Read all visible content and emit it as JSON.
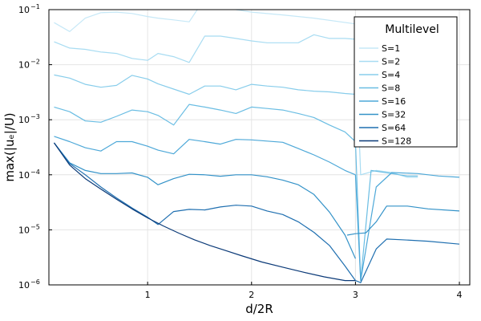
{
  "chart_data": {
    "type": "line",
    "title": "",
    "xlabel": "d/2R",
    "ylabel": "max(|uₑ|/U)",
    "xlim": [
      0.05,
      4.1
    ],
    "ylim": [
      1e-06,
      0.1
    ],
    "yscale": "log",
    "grid": true,
    "legend_position": "top-right",
    "x_ticks": [
      {
        "value": 1,
        "label": "1"
      },
      {
        "value": 2,
        "label": "2"
      },
      {
        "value": 3,
        "label": "3"
      },
      {
        "value": 4,
        "label": "4"
      }
    ],
    "y_ticks": [
      {
        "value": 1e-06,
        "base": "10",
        "exp": "−6"
      },
      {
        "value": 1e-05,
        "base": "10",
        "exp": "−5"
      },
      {
        "value": 0.0001,
        "base": "10",
        "exp": "−4"
      },
      {
        "value": 0.001,
        "base": "10",
        "exp": "−3"
      },
      {
        "value": 0.01,
        "base": "10",
        "exp": "−2"
      },
      {
        "value": 0.1,
        "base": "10",
        "exp": "−1"
      }
    ],
    "legend_title": "Multilevel",
    "series": [
      {
        "name": "S=1",
        "color": "#c6e8f7",
        "x": [
          0.1,
          0.25,
          0.4,
          0.55,
          0.7,
          0.85,
          1.0,
          1.1,
          1.25,
          1.4,
          1.55,
          1.7,
          1.85,
          2.0,
          2.3,
          2.6,
          3.0
        ],
        "y": [
          0.058,
          0.04,
          0.07,
          0.088,
          0.09,
          0.085,
          0.075,
          0.07,
          0.065,
          0.06,
          0.16,
          0.12,
          0.1,
          0.09,
          0.08,
          0.07,
          0.055
        ]
      },
      {
        "name": "S=2",
        "color": "#a8dcf2",
        "x": [
          0.1,
          0.25,
          0.4,
          0.55,
          0.7,
          0.85,
          1.0,
          1.1,
          1.25,
          1.4,
          1.55,
          1.7,
          1.85,
          2.0,
          2.15,
          2.3,
          2.45,
          2.6,
          2.75,
          2.9,
          3.0
        ],
        "y": [
          0.026,
          0.02,
          0.019,
          0.017,
          0.016,
          0.013,
          0.012,
          0.016,
          0.014,
          0.011,
          0.033,
          0.033,
          0.03,
          0.027,
          0.025,
          0.025,
          0.025,
          0.035,
          0.03,
          0.03,
          0.029
        ]
      },
      {
        "name": "S=4",
        "color": "#88cdeb",
        "x": [
          0.1,
          0.25,
          0.4,
          0.55,
          0.7,
          0.85,
          1.0,
          1.1,
          1.25,
          1.4,
          1.55,
          1.7,
          1.85,
          2.0,
          2.15,
          2.3,
          2.45,
          2.6,
          2.75,
          2.9,
          3.0
        ],
        "y": [
          0.0065,
          0.0057,
          0.0044,
          0.0039,
          0.0042,
          0.0064,
          0.0055,
          0.0045,
          0.0036,
          0.0029,
          0.0041,
          0.0041,
          0.0035,
          0.0044,
          0.0041,
          0.0039,
          0.0035,
          0.0033,
          0.0032,
          0.003,
          0.0029
        ]
      },
      {
        "name": "S=8",
        "color": "#6abde3",
        "x": [
          0.1,
          0.25,
          0.4,
          0.55,
          0.7,
          0.85,
          1.0,
          1.1,
          1.25,
          1.4,
          1.55,
          1.7,
          1.85,
          2.0,
          2.15,
          2.3,
          2.45,
          2.6,
          2.75,
          2.9,
          3.0
        ],
        "y": [
          0.0017,
          0.0014,
          0.00095,
          0.0009,
          0.00115,
          0.0015,
          0.0014,
          0.0012,
          0.0008,
          0.0019,
          0.0017,
          0.0015,
          0.0013,
          0.0017,
          0.0016,
          0.0015,
          0.0013,
          0.0011,
          0.0008,
          0.0006,
          0.0004
        ]
      },
      {
        "name": "S=16",
        "color": "#4da8d8",
        "x": [
          0.1,
          0.25,
          0.4,
          0.55,
          0.7,
          0.85,
          1.0,
          1.1,
          1.25,
          1.4,
          1.55,
          1.7,
          1.85,
          2.0,
          2.15,
          2.3,
          2.45,
          2.6,
          2.75,
          2.9,
          3.0
        ],
        "y": [
          0.0005,
          0.0004,
          0.00031,
          0.00027,
          0.0004,
          0.0004,
          0.00033,
          0.00028,
          0.00024,
          0.00044,
          0.0004,
          0.00036,
          0.00044,
          0.00043,
          0.00041,
          0.00039,
          0.0003,
          0.00023,
          0.00017,
          0.00012,
          0.0001
        ]
      },
      {
        "name": "S=32",
        "color": "#3392c8",
        "x": [
          0.1,
          0.25,
          0.4,
          0.55,
          0.7,
          0.85,
          1.0,
          1.1,
          1.25,
          1.4,
          1.55,
          1.7,
          1.85,
          2.0,
          2.15,
          2.3,
          2.45,
          2.6,
          2.75,
          2.9,
          3.0
        ],
        "y": [
          0.00038,
          0.000165,
          0.00012,
          0.000105,
          0.000105,
          0.000108,
          9e-05,
          6.6e-05,
          8.5e-05,
          0.000102,
          0.0001,
          9.4e-05,
          0.0001,
          0.0001,
          9.2e-05,
          8e-05,
          6.6e-05,
          4.4e-05,
          2.1e-05,
          8e-06,
          3e-06
        ]
      },
      {
        "name": "S=64",
        "color": "#1f6fb0",
        "x": [
          0.1,
          0.25,
          0.4,
          0.55,
          0.7,
          0.85,
          1.0,
          1.1,
          1.25,
          1.4,
          1.55,
          1.7,
          1.85,
          2.0,
          2.15,
          2.3,
          2.45,
          2.6,
          2.75,
          2.9,
          3.0
        ],
        "y": [
          0.00038,
          0.00016,
          0.0001,
          6e-05,
          3.8e-05,
          2.5e-05,
          1.7e-05,
          1.25e-05,
          2.15e-05,
          2.35e-05,
          2.3e-05,
          2.6e-05,
          2.8e-05,
          2.7e-05,
          2.2e-05,
          1.9e-05,
          1.4e-05,
          9e-06,
          5.2e-06,
          2.2e-06,
          1.2e-06
        ]
      },
      {
        "name": "S=128",
        "color": "#0b3a78",
        "x": [
          0.1,
          0.25,
          0.4,
          0.55,
          0.7,
          0.85,
          1.0,
          1.15,
          1.3,
          1.45,
          1.6,
          1.75,
          1.9,
          2.1,
          2.3,
          2.5,
          2.7,
          2.9,
          3.0
        ],
        "y": [
          0.00038,
          0.00015,
          8.5e-05,
          5.5e-05,
          3.6e-05,
          2.4e-05,
          1.65e-05,
          1.18e-05,
          8.7e-06,
          6.6e-06,
          5.2e-06,
          4.2e-06,
          3.4e-06,
          2.6e-06,
          2.1e-06,
          1.7e-06,
          1.4e-06,
          1.2e-06,
          1.2e-06
        ]
      },
      {
        "name": "",
        "color": "#a8dcf2",
        "x": [
          3.0,
          3.05,
          3.2,
          3.35,
          3.5,
          3.6
        ],
        "y": [
          0.029,
          0.0001,
          0.00012,
          0.00011,
          9e-05,
          9e-05
        ]
      },
      {
        "name": "",
        "color": "#6abde3",
        "x": [
          3.0,
          3.05,
          3.15,
          3.35,
          3.5,
          3.6
        ],
        "y": [
          0.0004,
          1.2e-06,
          0.00012,
          0.000105,
          9.5e-05,
          9.5e-05
        ]
      },
      {
        "name": "",
        "color": "#4da8d8",
        "x": [
          3.0,
          3.05,
          3.2,
          3.35,
          3.6,
          3.8,
          4.0
        ],
        "y": [
          0.0001,
          1.2e-06,
          6e-05,
          0.00011,
          0.000105,
          9.5e-05,
          9e-05
        ]
      },
      {
        "name": "",
        "color": "#3392c8",
        "x": [
          2.92,
          3.0,
          3.1,
          3.2,
          3.3,
          3.5,
          3.7,
          4.0
        ],
        "y": [
          8e-06,
          8.5e-06,
          8.8e-06,
          1.4e-05,
          2.7e-05,
          2.7e-05,
          2.4e-05,
          2.2e-05
        ]
      },
      {
        "name": "",
        "color": "#1f6fb0",
        "x": [
          3.0,
          3.05,
          3.2,
          3.3,
          3.45,
          3.7,
          4.0
        ],
        "y": [
          1.2e-06,
          1.1e-06,
          4.5e-06,
          6.8e-06,
          6.6e-06,
          6.2e-06,
          5.5e-06
        ]
      }
    ]
  }
}
